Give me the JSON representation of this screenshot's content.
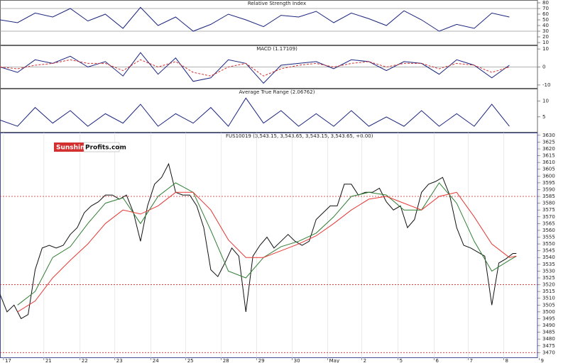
{
  "logo": {
    "part1": "Sunshine",
    "part2": "Profits.com"
  },
  "chart_data": [
    {
      "type": "line",
      "title": "Relative Strength Index",
      "x": [
        0,
        0.5,
        1,
        1.5,
        2,
        2.5,
        3,
        3.5,
        4,
        4.5,
        5,
        5.5,
        6,
        6.5,
        7,
        7.5,
        8,
        8.5,
        9,
        9.5,
        10,
        10.5,
        11,
        11.5,
        12,
        12.5,
        13,
        13.5,
        14,
        14.5
      ],
      "series": [
        {
          "color": "#1a237e",
          "values": [
            50,
            45,
            62,
            55,
            70,
            48,
            60,
            35,
            72,
            40,
            55,
            30,
            42,
            60,
            50,
            38,
            58,
            55,
            65,
            45,
            62,
            52,
            40,
            66,
            50,
            30,
            42,
            35,
            62,
            55
          ]
        }
      ],
      "xlim": [
        0,
        15.3
      ],
      "ylim": [
        5,
        85
      ],
      "yticks": [
        10,
        20,
        30,
        40,
        50,
        60,
        70,
        80
      ],
      "reference_lines": [
        70,
        30
      ],
      "reference_color": "#999999"
    },
    {
      "type": "line",
      "title": "MACD (1.17109)",
      "x": [
        0,
        0.5,
        1,
        1.5,
        2,
        2.5,
        3,
        3.5,
        4,
        4.5,
        5,
        5.5,
        6,
        6.5,
        7,
        7.5,
        8,
        8.5,
        9,
        9.5,
        10,
        10.5,
        11,
        11.5,
        12,
        12.5,
        13,
        13.5,
        14,
        14.5
      ],
      "series": [
        {
          "color": "#1a237e",
          "values": [
            0,
            -3,
            4,
            2,
            6,
            0,
            3,
            -5,
            8,
            -4,
            5,
            -8,
            -6,
            4,
            2,
            -9,
            1,
            2,
            3,
            -1,
            4,
            3,
            -2,
            3,
            2,
            -4,
            4,
            1,
            -6,
            1
          ]
        },
        {
          "color": "#d32f2f",
          "dashed": true,
          "values": [
            0,
            -1,
            1,
            2,
            4,
            2,
            2,
            -2,
            4,
            0,
            3,
            -3,
            -5,
            0,
            2,
            -5,
            -1,
            1,
            2,
            0,
            2,
            3,
            0,
            2,
            2,
            -1,
            2,
            1,
            -3,
            0
          ]
        }
      ],
      "xlim": [
        0,
        15.3
      ],
      "ylim": [
        -12,
        12
      ],
      "yticks": [
        -10,
        0,
        10
      ],
      "reference_lines": [
        0
      ],
      "reference_color": "#999999"
    },
    {
      "type": "line",
      "title": "Average True Range (2.06762)",
      "x": [
        0,
        0.5,
        1,
        1.5,
        2,
        2.5,
        3,
        3.5,
        4,
        4.5,
        5,
        5.5,
        6,
        6.5,
        7,
        7.5,
        8,
        8.5,
        9,
        9.5,
        10,
        10.5,
        11,
        11.5,
        12,
        12.5,
        13,
        13.5,
        14,
        14.5
      ],
      "series": [
        {
          "color": "#1a237e",
          "values": [
            4,
            2,
            8,
            3,
            7,
            2,
            6,
            3,
            9,
            2,
            6,
            3,
            8,
            2,
            11,
            3,
            7,
            2,
            6,
            2,
            7,
            2,
            5,
            2,
            7,
            2,
            6,
            2,
            9,
            2
          ]
        }
      ],
      "xlim": [
        0,
        15.3
      ],
      "ylim": [
        0,
        14
      ],
      "yticks": [
        5,
        10
      ]
    },
    {
      "type": "line",
      "title": "FUS10019 (3,543.15, 3,543.65, 3,543.15, 3,543.65, +0.00)",
      "series": [
        {
          "color": "#111111",
          "x": [
            0,
            0.2,
            0.4,
            0.6,
            0.8,
            1,
            1.2,
            1.4,
            1.6,
            1.8,
            2,
            2.2,
            2.4,
            2.6,
            2.8,
            3,
            3.2,
            3.4,
            3.6,
            3.8,
            4,
            4.2,
            4.4,
            4.6,
            4.8,
            5,
            5.2,
            5.4,
            5.6,
            5.8,
            6,
            6.2,
            6.4,
            6.6,
            6.8,
            7,
            7.2,
            7.4,
            7.6,
            7.8,
            8,
            8.2,
            8.4,
            8.6,
            8.8,
            9,
            9.2,
            9.4,
            9.6,
            9.8,
            10,
            10.2,
            10.4,
            10.6,
            10.8,
            11,
            11.2,
            11.4,
            11.6,
            11.8,
            12,
            12.2,
            12.4,
            12.6,
            12.8,
            13,
            13.2,
            13.4,
            13.6,
            13.8,
            14,
            14.2,
            14.4,
            14.6,
            14.7
          ],
          "values": [
            3513,
            3500,
            3505,
            3495,
            3498,
            3531,
            3547,
            3549,
            3547,
            3549,
            3557,
            3562,
            3573,
            3578,
            3581,
            3586,
            3586,
            3583,
            3586,
            3573,
            3552,
            3578,
            3594,
            3599,
            3609,
            3588,
            3586,
            3586,
            3578,
            3562,
            3531,
            3526,
            3536,
            3547,
            3541,
            3500,
            3541,
            3549,
            3555,
            3547,
            3552,
            3557,
            3552,
            3549,
            3552,
            3568,
            3573,
            3578,
            3578,
            3594,
            3594,
            3586,
            3588,
            3588,
            3591,
            3581,
            3575,
            3578,
            3562,
            3568,
            3588,
            3594,
            3596,
            3599,
            3586,
            3562,
            3549,
            3547,
            3544,
            3541,
            3505,
            3536,
            3539,
            3543,
            3543
          ]
        },
        {
          "color": "#2e7d32",
          "x": [
            0.5,
            1,
            1.5,
            2,
            2.5,
            3,
            3.5,
            4,
            4.5,
            5,
            5.5,
            6,
            6.5,
            7,
            7.5,
            8,
            8.5,
            9,
            9.5,
            10,
            10.5,
            11,
            11.5,
            12,
            12.5,
            13,
            13.5,
            14,
            14.5,
            14.7
          ],
          "values": [
            3505,
            3515,
            3540,
            3548,
            3565,
            3580,
            3584,
            3565,
            3585,
            3595,
            3588,
            3560,
            3530,
            3525,
            3540,
            3548,
            3552,
            3558,
            3570,
            3585,
            3588,
            3586,
            3575,
            3575,
            3595,
            3580,
            3552,
            3530,
            3538,
            3541
          ]
        },
        {
          "color": "#e53935",
          "x": [
            0.5,
            1,
            1.5,
            2,
            2.5,
            3,
            3.5,
            4,
            4.5,
            5,
            5.5,
            6,
            6.5,
            7,
            7.5,
            8,
            8.5,
            9,
            9.5,
            10,
            10.5,
            11,
            11.5,
            12,
            12.5,
            13,
            13.5,
            14,
            14.5,
            14.7
          ],
          "values": [
            3500,
            3508,
            3525,
            3538,
            3550,
            3565,
            3575,
            3572,
            3578,
            3588,
            3588,
            3575,
            3553,
            3540,
            3540,
            3545,
            3550,
            3556,
            3565,
            3575,
            3583,
            3585,
            3580,
            3575,
            3585,
            3588,
            3570,
            3550,
            3540,
            3541
          ]
        }
      ],
      "xlim": [
        0,
        15.3
      ],
      "ylim": [
        3466,
        3632
      ],
      "yticks": [
        3470,
        3475,
        3480,
        3485,
        3490,
        3495,
        3500,
        3505,
        3510,
        3515,
        3520,
        3525,
        3530,
        3535,
        3540,
        3545,
        3550,
        3555,
        3560,
        3565,
        3570,
        3575,
        3580,
        3585,
        3590,
        3595,
        3600,
        3605,
        3610,
        3615,
        3620,
        3625,
        3630
      ],
      "xticks": [
        {
          "value": 0.1,
          "label": "17"
        },
        {
          "value": 1.25,
          "label": "21"
        },
        {
          "value": 2.28,
          "label": "22"
        },
        {
          "value": 3.27,
          "label": "23"
        },
        {
          "value": 4.3,
          "label": "24"
        },
        {
          "value": 5.29,
          "label": "25"
        },
        {
          "value": 6.3,
          "label": "28"
        },
        {
          "value": 7.31,
          "label": "29"
        },
        {
          "value": 8.32,
          "label": "30"
        },
        {
          "value": 9.33,
          "label": "May"
        },
        {
          "value": 10.3,
          "label": "2"
        },
        {
          "value": 11.33,
          "label": "5"
        },
        {
          "value": 12.36,
          "label": "6"
        },
        {
          "value": 13.33,
          "label": "7"
        },
        {
          "value": 14.34,
          "label": "8"
        },
        {
          "value": 15.35,
          "label": "9"
        }
      ],
      "reference_lines": [
        3585,
        3520,
        3470
      ],
      "reference_color": "#c62828"
    }
  ]
}
